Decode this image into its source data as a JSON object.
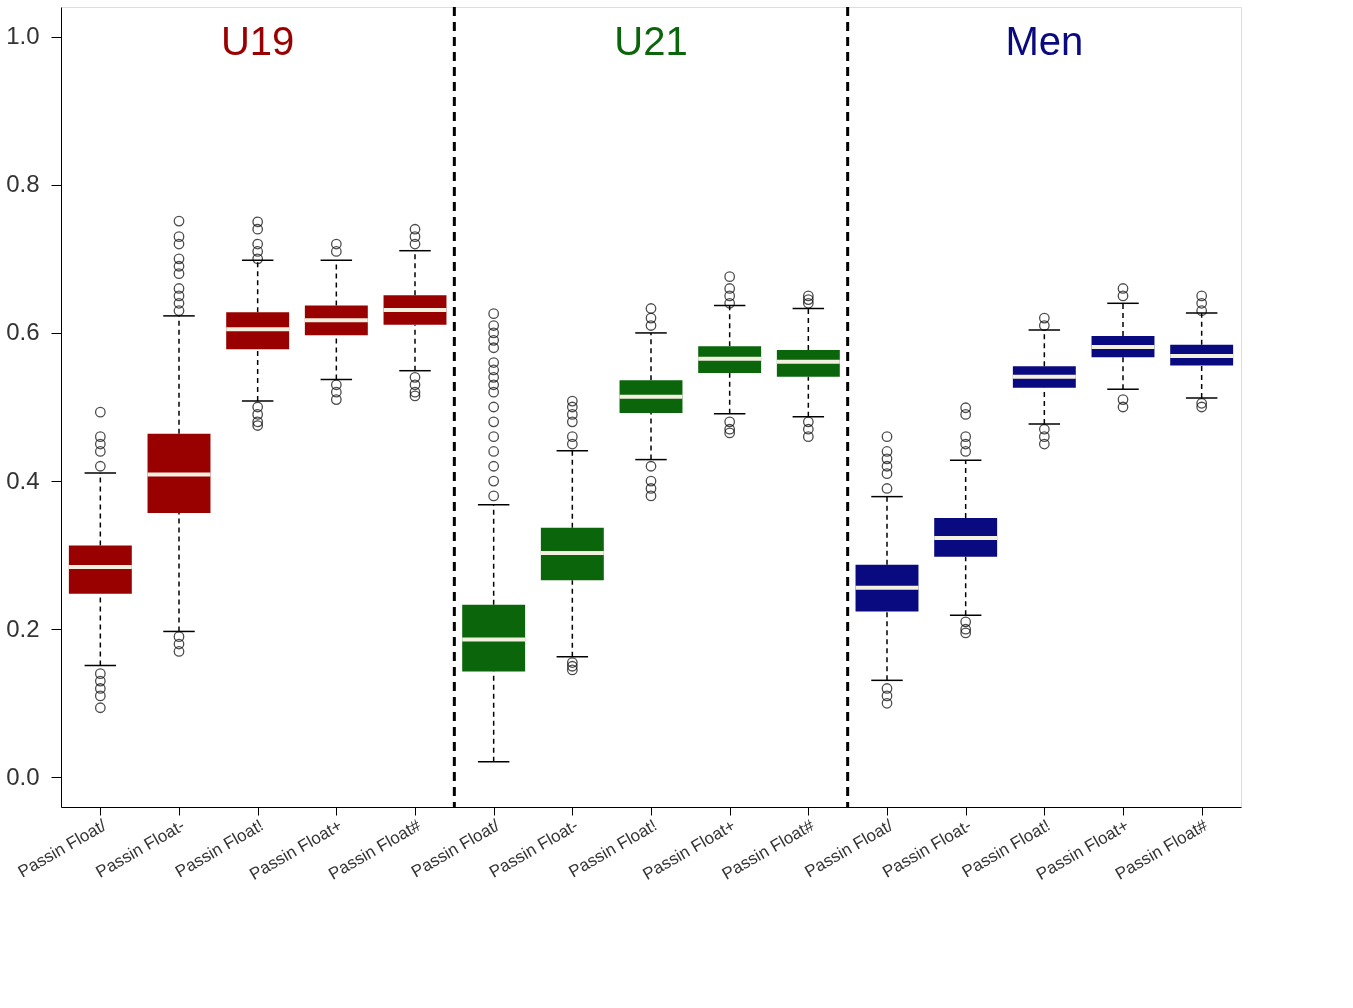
{
  "chart_data": {
    "type": "box",
    "categories": [
      "Passin Float/",
      "Passin Float-",
      "Passin Float!",
      "Passin Float+",
      "Passin Float#",
      "Passin Float/",
      "Passin Float-",
      "Passin Float!",
      "Passin Float+",
      "Passin Float#",
      "Passin Float/",
      "Passin Float-",
      "Passin Float!",
      "Passin Float+",
      "Passin Float#"
    ],
    "series": [
      {
        "name": "U19",
        "color": "#990000",
        "boxes": [
          {
            "low": 0.151,
            "q1": 0.248,
            "median": 0.284,
            "q3": 0.313,
            "high": 0.411,
            "outliers": [
              0.493,
              0.46,
              0.45,
              0.44,
              0.42,
              0.14,
              0.13,
              0.12,
              0.11,
              0.094
            ]
          },
          {
            "low": 0.197,
            "q1": 0.357,
            "median": 0.409,
            "q3": 0.464,
            "high": 0.623,
            "outliers": [
              0.751,
              0.73,
              0.72,
              0.7,
              0.69,
              0.68,
              0.66,
              0.65,
              0.64,
              0.63,
              0.19,
              0.18,
              0.17
            ]
          },
          {
            "low": 0.508,
            "q1": 0.578,
            "median": 0.605,
            "q3": 0.628,
            "high": 0.698,
            "outliers": [
              0.75,
              0.74,
              0.72,
              0.71,
              0.7,
              0.5,
              0.49,
              0.48,
              0.475
            ]
          },
          {
            "low": 0.537,
            "q1": 0.597,
            "median": 0.617,
            "q3": 0.637,
            "high": 0.698,
            "outliers": [
              0.72,
              0.71,
              0.53,
              0.52,
              0.51
            ]
          },
          {
            "low": 0.549,
            "q1": 0.611,
            "median": 0.631,
            "q3": 0.651,
            "high": 0.711,
            "outliers": [
              0.74,
              0.73,
              0.72,
              0.54,
              0.53,
              0.52,
              0.515
            ]
          },
          null,
          null,
          null,
          null,
          null,
          null,
          null,
          null,
          null,
          null
        ]
      },
      {
        "name": "U21",
        "color": "#0b650b",
        "boxes": [
          null,
          null,
          null,
          null,
          null,
          {
            "low": 0.021,
            "q1": 0.143,
            "median": 0.186,
            "q3": 0.233,
            "high": 0.368,
            "outliers": [
              0.626,
              0.61,
              0.6,
              0.59,
              0.58,
              0.56,
              0.55,
              0.54,
              0.53,
              0.52,
              0.5,
              0.48,
              0.46,
              0.44,
              0.42,
              0.4,
              0.38
            ]
          },
          {
            "low": 0.163,
            "q1": 0.266,
            "median": 0.303,
            "q3": 0.337,
            "high": 0.441,
            "outliers": [
              0.508,
              0.5,
              0.49,
              0.48,
              0.46,
              0.45,
              0.155,
              0.15,
              0.145
            ]
          },
          {
            "low": 0.429,
            "q1": 0.492,
            "median": 0.514,
            "q3": 0.536,
            "high": 0.6,
            "outliers": [
              0.633,
              0.62,
              0.61,
              0.42,
              0.4,
              0.39,
              0.38
            ]
          },
          {
            "low": 0.491,
            "q1": 0.546,
            "median": 0.565,
            "q3": 0.582,
            "high": 0.637,
            "outliers": [
              0.676,
              0.66,
              0.65,
              0.64,
              0.48,
              0.47,
              0.465
            ]
          },
          {
            "low": 0.487,
            "q1": 0.541,
            "median": 0.561,
            "q3": 0.577,
            "high": 0.633,
            "outliers": [
              0.65,
              0.645,
              0.64,
              0.48,
              0.47,
              0.46
            ]
          },
          null,
          null,
          null,
          null,
          null
        ]
      },
      {
        "name": "Men",
        "color": "#0a0a80",
        "boxes": [
          null,
          null,
          null,
          null,
          null,
          null,
          null,
          null,
          null,
          null,
          {
            "low": 0.131,
            "q1": 0.224,
            "median": 0.256,
            "q3": 0.287,
            "high": 0.379,
            "outliers": [
              0.46,
              0.44,
              0.43,
              0.42,
              0.41,
              0.39,
              0.12,
              0.11,
              0.1
            ]
          },
          {
            "low": 0.219,
            "q1": 0.298,
            "median": 0.323,
            "q3": 0.35,
            "high": 0.428,
            "outliers": [
              0.499,
              0.49,
              0.46,
              0.45,
              0.44,
              0.21,
              0.2,
              0.195
            ]
          },
          {
            "low": 0.477,
            "q1": 0.526,
            "median": 0.541,
            "q3": 0.555,
            "high": 0.604,
            "outliers": [
              0.62,
              0.61,
              0.47,
              0.46,
              0.45
            ]
          },
          {
            "low": 0.524,
            "q1": 0.567,
            "median": 0.581,
            "q3": 0.596,
            "high": 0.64,
            "outliers": [
              0.66,
              0.65,
              0.51,
              0.5
            ]
          },
          {
            "low": 0.512,
            "q1": 0.556,
            "median": 0.569,
            "q3": 0.584,
            "high": 0.627,
            "outliers": [
              0.65,
              0.64,
              0.63,
              0.505,
              0.5
            ]
          }
        ]
      }
    ],
    "ylim": [
      -0.04,
      1.04
    ],
    "yticks": [
      {
        "value": 0,
        "label": "0.0"
      },
      {
        "value": 0.2,
        "label": "0.2"
      },
      {
        "value": 0.4,
        "label": "0.4"
      },
      {
        "value": 0.6,
        "label": "0.6"
      },
      {
        "value": 0.8,
        "label": "0.8"
      },
      {
        "value": 1,
        "label": "1.0"
      }
    ],
    "grid": false,
    "legend": false
  }
}
